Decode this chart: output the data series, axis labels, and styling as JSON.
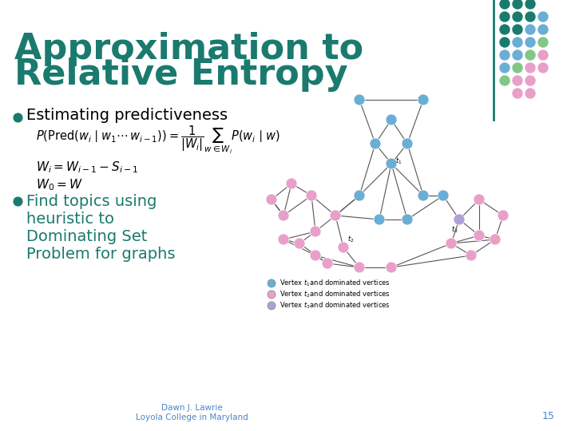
{
  "title_line1": "Approximation to",
  "title_line2": "Relative Entropy",
  "title_color": "#1a7a6e",
  "title_fontsize": 32,
  "bullet_color": "#1a7a6e",
  "bullet1_text": "Estimating predictiveness",
  "bullet2_lines": [
    "Find topics using",
    "heuristic to",
    "Dominating Set",
    "Problem for graphs"
  ],
  "formula1": "$P(\\mathrm{Pred}(w_i\\mid w_1\\Box\\ w_{i-1}))=\\dfrac{1}{|W_i|}\\displaystyle\\sum_{w\\in W_i}P(w_i\\mid w)$",
  "formula2": "$W_i = W_{i-1} - S_{i-1}$",
  "formula3": "$W_0 = W$",
  "footer_text": "Dawn J. Lawrie\nLoyola College in Maryland",
  "footer_page": "15",
  "footer_color": "#4a86c8",
  "bg_color": "#ffffff",
  "teal_line_color": "#1a7a6e",
  "dot_colors_grid": {
    "teal": "#1a7a6e",
    "blue": "#6aaed6",
    "green": "#82c785",
    "pink": "#e8a0c8"
  },
  "legend_labels": [
    "Vertex $t_1$and dominated vertices",
    "Vertex $t_2$and dominated vertices",
    "Vertex $t_3$and dominated vertices"
  ],
  "legend_colors": [
    "#6aaed6",
    "#e8a0c8",
    "#b0a0d8"
  ],
  "graph_node_blue": "#6aaed6",
  "graph_node_pink": "#e8a0c8",
  "graph_node_purple": "#b0a0d8",
  "graph_edge_color": "#555555"
}
